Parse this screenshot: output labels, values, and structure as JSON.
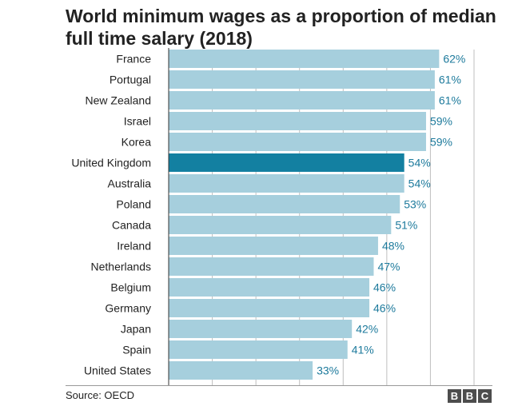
{
  "title": "World minimum wages as a proportion of median full time salary (2018)",
  "source": "Source: OECD",
  "logo": [
    "B",
    "B",
    "C"
  ],
  "colors": {
    "bar": "#a6cfdd",
    "highlight_bar": "#1380a1",
    "gridline": "#bfbfbf",
    "value_label": "#1d7a9c"
  },
  "chart_data": {
    "type": "bar",
    "orientation": "horizontal",
    "title": "World minimum wages as a proportion of median full time salary (2018)",
    "xlabel": "",
    "ylabel": "",
    "xlim": [
      0,
      70
    ],
    "grid": true,
    "value_suffix": "%",
    "highlight": "United Kingdom",
    "categories": [
      "France",
      "Portugal",
      "New Zealand",
      "Israel",
      "Korea",
      "United Kingdom",
      "Australia",
      "Poland",
      "Canada",
      "Ireland",
      "Netherlands",
      "Belgium",
      "Germany",
      "Japan",
      "Spain",
      "United States"
    ],
    "values": [
      62,
      61,
      61,
      59,
      59,
      54,
      54,
      53,
      51,
      48,
      47,
      46,
      46,
      42,
      41,
      33
    ],
    "labels": [
      "62%",
      "61%",
      "61%",
      "59%",
      "59%",
      "54%",
      "54%",
      "53%",
      "51%",
      "48%",
      "47%",
      "46%",
      "46%",
      "42%",
      "41%",
      "33%"
    ]
  }
}
